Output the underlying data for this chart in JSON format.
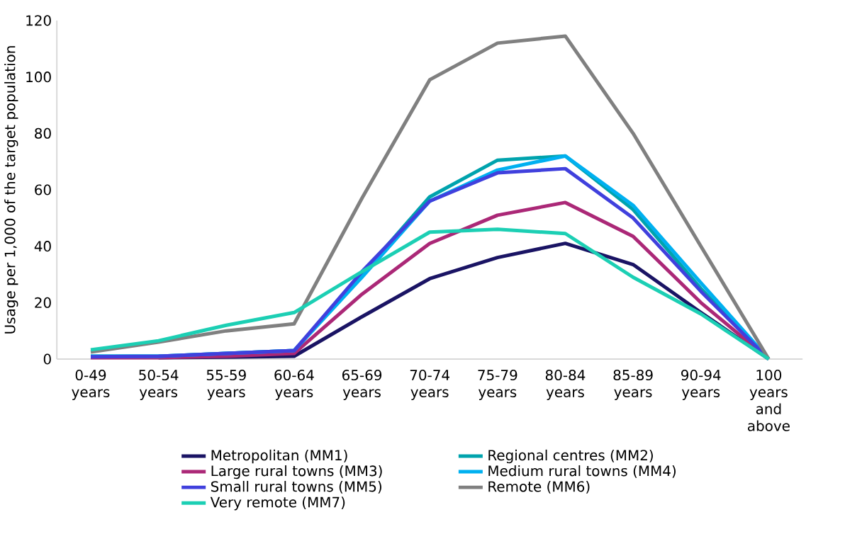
{
  "chart_data": {
    "type": "line",
    "ylabel": "Usage per 1,000 of the target population",
    "categories": [
      "0-49 years",
      "50-54 years",
      "55-59 years",
      "60-64 years",
      "65-69 years",
      "70-74 years",
      "75-79 years",
      "80-84 years",
      "85-89 years",
      "90-94 years",
      "100 years and above"
    ],
    "ylim": [
      0,
      120
    ],
    "yticks": [
      0,
      20,
      40,
      60,
      80,
      100,
      120
    ],
    "grid": false,
    "legend": "bottom",
    "series": [
      {
        "name": "Metropolitan (MM1)",
        "color": "#1a1464",
        "values": [
          null,
          0.5,
          0.7,
          1,
          15,
          28.5,
          36,
          41,
          33.5,
          16.5,
          0
        ]
      },
      {
        "name": "Regional centres (MM2)",
        "color": "#00a3ad",
        "values": [
          1,
          1,
          2,
          3,
          30,
          57.5,
          70.5,
          72,
          53,
          25,
          0
        ]
      },
      {
        "name": "Large rural towns (MM3)",
        "color": "#ab2877",
        "values": [
          0.5,
          0.5,
          1,
          2,
          23,
          41,
          51,
          55.5,
          43.5,
          20,
          0
        ]
      },
      {
        "name": "Medium rural towns (MM4)",
        "color": "#00b0f0",
        "values": [
          1,
          1,
          2,
          3,
          29,
          56,
          67,
          72,
          54.5,
          27,
          0
        ]
      },
      {
        "name": "Small rural towns (MM5)",
        "color": "#4040dd",
        "values": [
          0.8,
          1,
          2,
          3,
          31,
          56,
          66,
          67.5,
          50,
          24,
          0
        ]
      },
      {
        "name": "Remote (MM6)",
        "color": "#808080",
        "values": [
          2.5,
          6,
          10,
          12.5,
          57,
          99,
          112,
          114.5,
          80,
          40,
          0
        ]
      },
      {
        "name": "Very remote (MM7)",
        "color": "#1ccfb4",
        "values": [
          3.3,
          6.5,
          12,
          16.5,
          31,
          45,
          46,
          44.5,
          29,
          16,
          0
        ]
      }
    ]
  }
}
